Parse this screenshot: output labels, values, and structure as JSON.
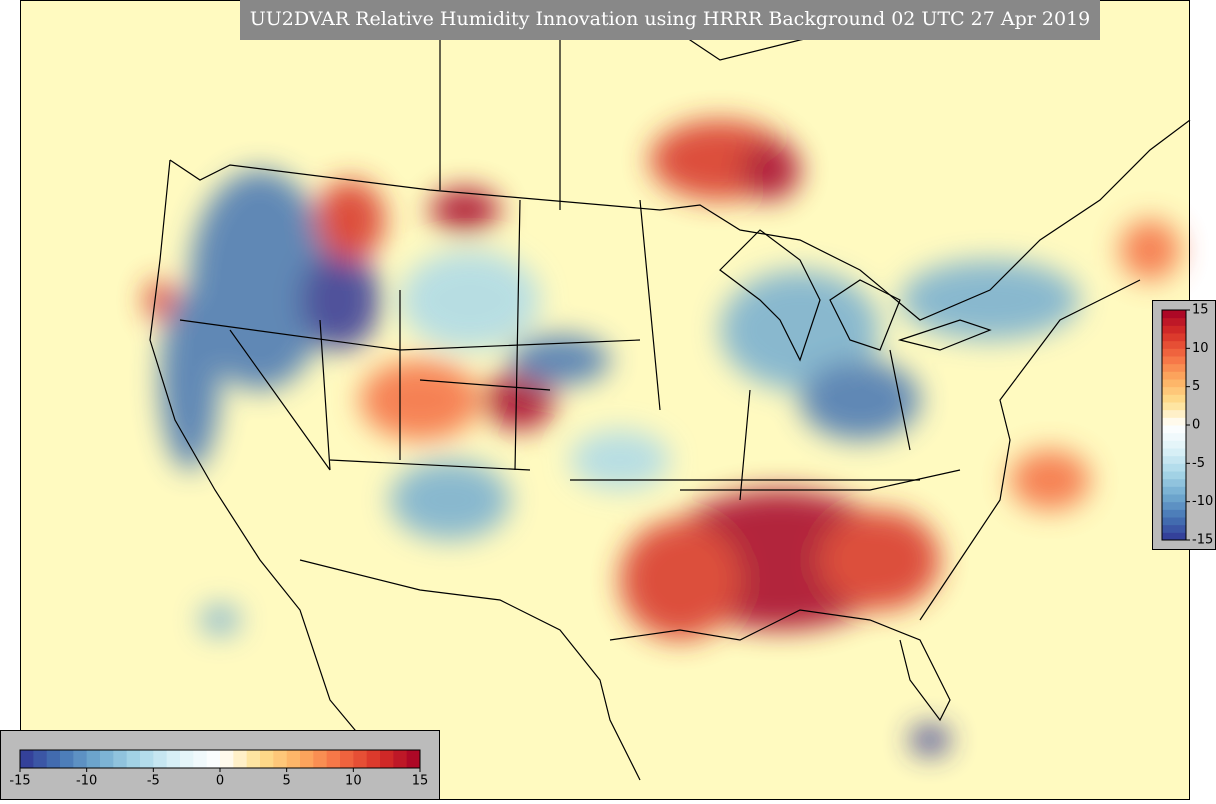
{
  "title": "UU2DVAR Relative Humidity Innovation using HRRR Background 02 UTC 27 Apr 2019",
  "colorbars": [
    {
      "orientation": "horizontal",
      "lim": [
        -15,
        15
      ],
      "ticks": [
        -15,
        -10,
        -5,
        0,
        5,
        10,
        15
      ],
      "colors": [
        "#313695",
        "#4575b4",
        "#74add1",
        "#abd9e9",
        "#e0f3f8",
        "#ffffff",
        "#fee090",
        "#fdae61",
        "#f46d43",
        "#d73027",
        "#a50026"
      ]
    },
    {
      "orientation": "vertical",
      "lim": [
        -15,
        15
      ],
      "ticks": [
        -15,
        -10,
        -5,
        0,
        5,
        10,
        15
      ],
      "colors": [
        "#313695",
        "#4575b4",
        "#74add1",
        "#abd9e9",
        "#e0f3f8",
        "#ffffff",
        "#fee090",
        "#fdae61",
        "#f46d43",
        "#d73027",
        "#a50026"
      ]
    }
  ]
}
